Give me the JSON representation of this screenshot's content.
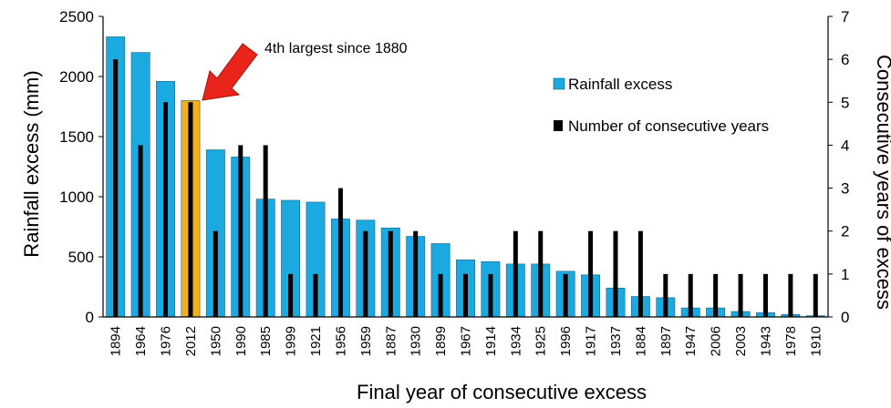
{
  "chart_data": {
    "type": "bar",
    "title": "",
    "xlabel": "Final year of consecutive excess",
    "ylabel": "Rainfall excess (mm)",
    "y2label": "Consecutive years of excess",
    "ylim": [
      0,
      2500
    ],
    "y2lim": [
      0,
      7
    ],
    "yticks": [
      0,
      500,
      1000,
      1500,
      2000,
      2500
    ],
    "y2ticks": [
      0,
      1,
      2,
      3,
      4,
      5,
      6,
      7
    ],
    "grid": false,
    "legend_position": "top-right",
    "categories": [
      "1894",
      "1964",
      "1976",
      "2012",
      "1950",
      "1990",
      "1985",
      "1999",
      "1921",
      "1956",
      "1959",
      "1887",
      "1930",
      "1899",
      "1967",
      "1914",
      "1934",
      "1925",
      "1996",
      "1917",
      "1937",
      "1884",
      "1897",
      "1947",
      "2006",
      "2003",
      "1943",
      "1978",
      "1910"
    ],
    "series": [
      {
        "name": "Rainfall excess",
        "axis": "left",
        "color": "#1ba9e1",
        "highlight_index": 3,
        "highlight_color": "#f5b01d",
        "values": [
          2330,
          2200,
          1960,
          1800,
          1390,
          1330,
          980,
          970,
          955,
          815,
          805,
          740,
          670,
          610,
          475,
          460,
          440,
          440,
          380,
          350,
          240,
          170,
          160,
          75,
          75,
          45,
          35,
          20,
          10
        ]
      },
      {
        "name": "Number of consecutive years",
        "axis": "right",
        "color": "#000000",
        "values": [
          6,
          4,
          5,
          5,
          2,
          4,
          4,
          1,
          1,
          3,
          2,
          2,
          2,
          1,
          1,
          1,
          2,
          2,
          1,
          2,
          2,
          2,
          1,
          1,
          1,
          1,
          1,
          1,
          1
        ]
      }
    ],
    "annotation": {
      "text": "4th largest since 1880",
      "target_index": 3,
      "arrow_color": "#e8241b"
    }
  }
}
